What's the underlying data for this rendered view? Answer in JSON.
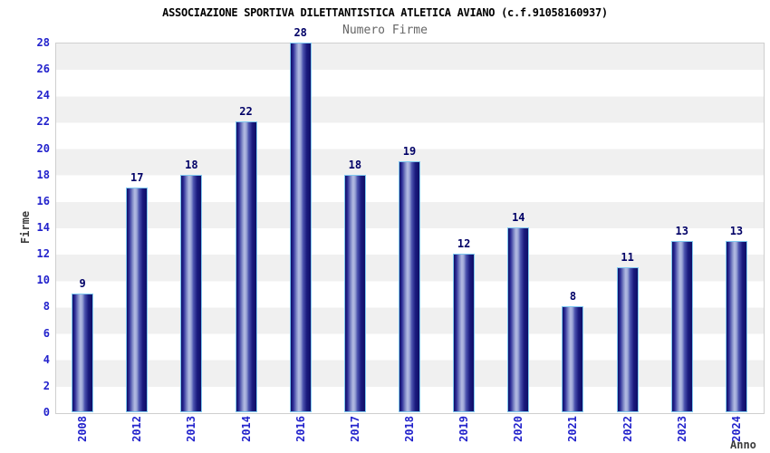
{
  "chart_data": {
    "type": "bar",
    "title": "ASSOCIAZIONE SPORTIVA DILETTANTISTICA ATLETICA AVIANO (c.f.91058160937)",
    "subtitle": "Numero Firme",
    "xlabel": "Anno",
    "ylabel": "Firme",
    "categories": [
      "2008",
      "2012",
      "2013",
      "2014",
      "2016",
      "2017",
      "2018",
      "2019",
      "2020",
      "2021",
      "2022",
      "2023",
      "2024"
    ],
    "values": [
      9,
      17,
      18,
      22,
      28,
      18,
      19,
      12,
      14,
      8,
      11,
      13,
      13
    ],
    "ylim": [
      0,
      28
    ],
    "yticks": [
      0,
      2,
      4,
      6,
      8,
      10,
      12,
      14,
      16,
      18,
      20,
      22,
      24,
      26,
      28
    ],
    "grid": "horizontal-bands",
    "legend": "none",
    "colors": {
      "bar_dark": "#0e0e66",
      "bar_light": "#b4bce2",
      "bar_border": "#7fc8f0",
      "axis_label_blue": "#2222cc",
      "value_label_navy": "#000066",
      "band_gray": "#f0f0f0",
      "axis_title_gray": "#3c3c3c",
      "subtitle_gray": "#666666",
      "title_black": "#000000"
    }
  }
}
